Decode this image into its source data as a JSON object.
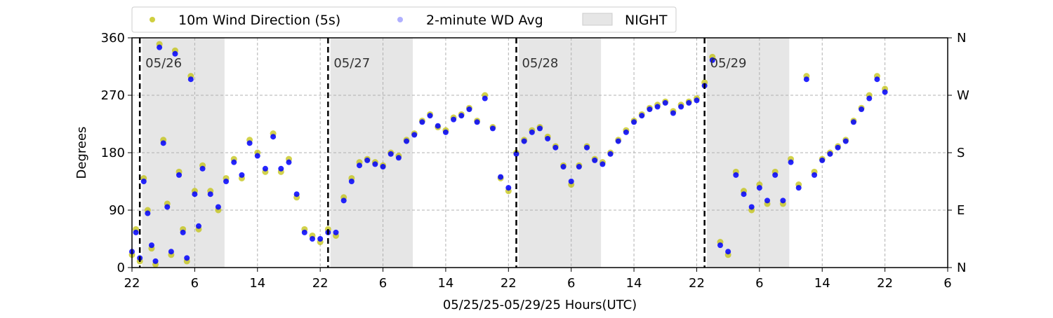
{
  "chart_data": {
    "type": "scatter",
    "xlabel": "05/25/25-05/29/25  Hours(UTC)",
    "ylabel": "Degrees",
    "xlim": [
      0,
      104
    ],
    "ylim": [
      0,
      360
    ],
    "x_tick_values": [
      0,
      8,
      16,
      24,
      32,
      40,
      48,
      56,
      64,
      72,
      80,
      88,
      96,
      104
    ],
    "x_tick_labels": [
      "22",
      "6",
      "14",
      "22",
      "6",
      "14",
      "22",
      "6",
      "14",
      "22",
      "6",
      "14",
      "22",
      "6"
    ],
    "y_ticks": [
      0,
      90,
      180,
      270,
      360
    ],
    "y_tick_labels": [
      "0",
      "90",
      "180",
      "270",
      "360"
    ],
    "right_ticks": [
      0,
      90,
      180,
      270,
      360
    ],
    "right_tick_labels": [
      "N",
      "E",
      "S",
      "W",
      "N"
    ],
    "grid": true,
    "legend_position": "top",
    "day_markers": [
      {
        "x": 1,
        "label": "05/26"
      },
      {
        "x": 25,
        "label": "05/27"
      },
      {
        "x": 49,
        "label": "05/28"
      },
      {
        "x": 73,
        "label": "05/29"
      }
    ],
    "night_periods": [
      [
        1.3,
        11.8
      ],
      [
        25.3,
        35.8
      ],
      [
        49.3,
        59.8
      ],
      [
        73.3,
        83.8
      ]
    ],
    "series": [
      {
        "name": "10m Wind Direction (5s)",
        "color": "#bfbf00",
        "points": [
          [
            0,
            20
          ],
          [
            0.5,
            60
          ],
          [
            1,
            10
          ],
          [
            1.5,
            140
          ],
          [
            2,
            90
          ],
          [
            2.5,
            30
          ],
          [
            3,
            5
          ],
          [
            3.5,
            350
          ],
          [
            4,
            200
          ],
          [
            4.5,
            100
          ],
          [
            5,
            20
          ],
          [
            5.5,
            340
          ],
          [
            6,
            150
          ],
          [
            6.5,
            60
          ],
          [
            7,
            10
          ],
          [
            7.5,
            300
          ],
          [
            8,
            120
          ],
          [
            8.5,
            60
          ],
          [
            9,
            160
          ],
          [
            10,
            120
          ],
          [
            11,
            90
          ],
          [
            12,
            140
          ],
          [
            13,
            170
          ],
          [
            14,
            140
          ],
          [
            15,
            200
          ],
          [
            16,
            180
          ],
          [
            17,
            150
          ],
          [
            18,
            210
          ],
          [
            19,
            150
          ],
          [
            20,
            170
          ],
          [
            21,
            110
          ],
          [
            22,
            60
          ],
          [
            23,
            50
          ],
          [
            24,
            40
          ],
          [
            25,
            60
          ],
          [
            26,
            50
          ],
          [
            27,
            110
          ],
          [
            28,
            140
          ],
          [
            29,
            165
          ],
          [
            30,
            170
          ],
          [
            31,
            165
          ],
          [
            32,
            160
          ],
          [
            33,
            180
          ],
          [
            34,
            175
          ],
          [
            35,
            200
          ],
          [
            36,
            210
          ],
          [
            37,
            230
          ],
          [
            38,
            240
          ],
          [
            39,
            220
          ],
          [
            40,
            215
          ],
          [
            41,
            235
          ],
          [
            42,
            240
          ],
          [
            43,
            250
          ],
          [
            44,
            230
          ],
          [
            45,
            270
          ],
          [
            46,
            220
          ],
          [
            47,
            140
          ],
          [
            48,
            120
          ],
          [
            49,
            180
          ],
          [
            50,
            200
          ],
          [
            51,
            215
          ],
          [
            52,
            220
          ],
          [
            53,
            205
          ],
          [
            54,
            190
          ],
          [
            55,
            160
          ],
          [
            56,
            130
          ],
          [
            57,
            160
          ],
          [
            58,
            190
          ],
          [
            59,
            170
          ],
          [
            60,
            165
          ],
          [
            61,
            180
          ],
          [
            62,
            200
          ],
          [
            63,
            215
          ],
          [
            64,
            230
          ],
          [
            65,
            240
          ],
          [
            66,
            250
          ],
          [
            67,
            255
          ],
          [
            68,
            260
          ],
          [
            69,
            245
          ],
          [
            70,
            255
          ],
          [
            71,
            260
          ],
          [
            72,
            265
          ],
          [
            73,
            290
          ],
          [
            74,
            330
          ],
          [
            75,
            40
          ],
          [
            76,
            20
          ],
          [
            77,
            150
          ],
          [
            78,
            120
          ],
          [
            79,
            90
          ],
          [
            80,
            130
          ],
          [
            81,
            100
          ],
          [
            82,
            150
          ],
          [
            83,
            100
          ],
          [
            84,
            170
          ],
          [
            85,
            130
          ],
          [
            86,
            300
          ],
          [
            87,
            150
          ],
          [
            88,
            170
          ],
          [
            89,
            180
          ],
          [
            90,
            190
          ],
          [
            91,
            200
          ],
          [
            92,
            230
          ],
          [
            93,
            250
          ],
          [
            94,
            270
          ],
          [
            95,
            300
          ],
          [
            96,
            280
          ]
        ]
      },
      {
        "name": "2-minute WD Avg",
        "color": "#0000ff",
        "points": [
          [
            0,
            25
          ],
          [
            0.5,
            55
          ],
          [
            1,
            15
          ],
          [
            1.5,
            135
          ],
          [
            2,
            85
          ],
          [
            2.5,
            35
          ],
          [
            3,
            10
          ],
          [
            3.5,
            345
          ],
          [
            4,
            195
          ],
          [
            4.5,
            95
          ],
          [
            5,
            25
          ],
          [
            5.5,
            335
          ],
          [
            6,
            145
          ],
          [
            6.5,
            55
          ],
          [
            7,
            15
          ],
          [
            7.5,
            295
          ],
          [
            8,
            115
          ],
          [
            8.5,
            65
          ],
          [
            9,
            155
          ],
          [
            10,
            115
          ],
          [
            11,
            95
          ],
          [
            12,
            135
          ],
          [
            13,
            165
          ],
          [
            14,
            145
          ],
          [
            15,
            195
          ],
          [
            16,
            175
          ],
          [
            17,
            155
          ],
          [
            18,
            205
          ],
          [
            19,
            155
          ],
          [
            20,
            165
          ],
          [
            21,
            115
          ],
          [
            22,
            55
          ],
          [
            23,
            45
          ],
          [
            24,
            45
          ],
          [
            25,
            55
          ],
          [
            26,
            55
          ],
          [
            27,
            105
          ],
          [
            28,
            135
          ],
          [
            29,
            160
          ],
          [
            30,
            168
          ],
          [
            31,
            162
          ],
          [
            32,
            158
          ],
          [
            33,
            178
          ],
          [
            34,
            172
          ],
          [
            35,
            198
          ],
          [
            36,
            208
          ],
          [
            37,
            228
          ],
          [
            38,
            238
          ],
          [
            39,
            222
          ],
          [
            40,
            212
          ],
          [
            41,
            232
          ],
          [
            42,
            238
          ],
          [
            43,
            248
          ],
          [
            44,
            228
          ],
          [
            45,
            265
          ],
          [
            46,
            218
          ],
          [
            47,
            142
          ],
          [
            48,
            125
          ],
          [
            49,
            178
          ],
          [
            50,
            198
          ],
          [
            51,
            212
          ],
          [
            52,
            218
          ],
          [
            53,
            202
          ],
          [
            54,
            188
          ],
          [
            55,
            158
          ],
          [
            56,
            135
          ],
          [
            57,
            158
          ],
          [
            58,
            188
          ],
          [
            59,
            168
          ],
          [
            60,
            162
          ],
          [
            61,
            178
          ],
          [
            62,
            198
          ],
          [
            63,
            212
          ],
          [
            64,
            228
          ],
          [
            65,
            238
          ],
          [
            66,
            248
          ],
          [
            67,
            252
          ],
          [
            68,
            258
          ],
          [
            69,
            242
          ],
          [
            70,
            252
          ],
          [
            71,
            258
          ],
          [
            72,
            262
          ],
          [
            73,
            285
          ],
          [
            74,
            325
          ],
          [
            75,
            35
          ],
          [
            76,
            25
          ],
          [
            77,
            145
          ],
          [
            78,
            115
          ],
          [
            79,
            95
          ],
          [
            80,
            125
          ],
          [
            81,
            105
          ],
          [
            82,
            145
          ],
          [
            83,
            105
          ],
          [
            84,
            165
          ],
          [
            85,
            125
          ],
          [
            86,
            295
          ],
          [
            87,
            145
          ],
          [
            88,
            168
          ],
          [
            89,
            178
          ],
          [
            90,
            188
          ],
          [
            91,
            198
          ],
          [
            92,
            228
          ],
          [
            93,
            248
          ],
          [
            94,
            265
          ],
          [
            95,
            295
          ],
          [
            96,
            275
          ]
        ]
      }
    ],
    "legend": {
      "entries": [
        {
          "label": "10m Wind Direction (5s)",
          "symbol": "dot",
          "color": "#bfbf00"
        },
        {
          "label": "2-minute WD Avg",
          "symbol": "dot",
          "color": "#8f8fff"
        },
        {
          "label": "NIGHT",
          "symbol": "patch",
          "color": "#e6e6e6"
        }
      ]
    }
  }
}
